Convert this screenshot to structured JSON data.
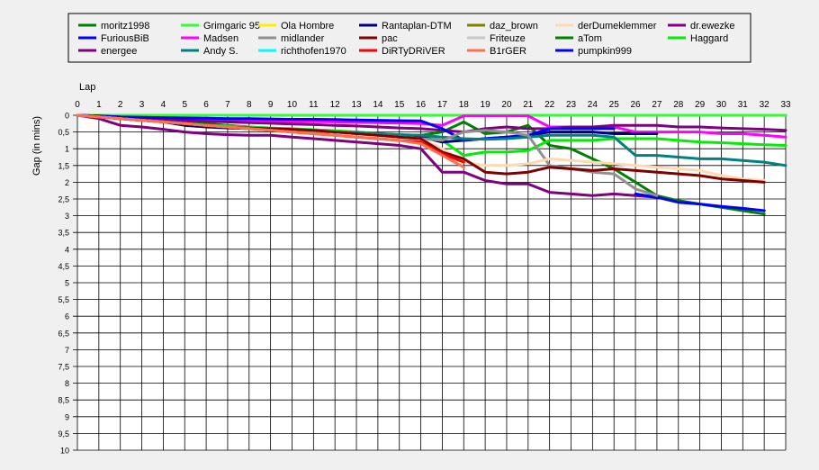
{
  "chart_data": {
    "type": "line",
    "title": "",
    "xlabel": "Lap",
    "ylabel": "Gap (in mins)",
    "y_inverted": true,
    "xlim": [
      0,
      33
    ],
    "ylim": [
      0,
      10
    ],
    "x_ticks": [
      "0",
      "1",
      "2",
      "3",
      "4",
      "5",
      "6",
      "7",
      "8",
      "9",
      "10",
      "11",
      "12",
      "13",
      "14",
      "15",
      "16",
      "17",
      "18",
      "19",
      "20",
      "21",
      "22",
      "23",
      "24",
      "25",
      "26",
      "27",
      "28",
      "29",
      "30",
      "31",
      "32",
      "33"
    ],
    "y_ticks": [
      "0",
      "0,5",
      "1",
      "1,5",
      "2",
      "2,5",
      "3",
      "3,5",
      "4",
      "4,5",
      "5",
      "5,5",
      "6",
      "6,5",
      "7",
      "7,5",
      "8",
      "8,5",
      "9",
      "9,5",
      "10"
    ],
    "grid": true,
    "legend_position": "top",
    "legend": [
      {
        "name": "moritz1998",
        "color": "#008000"
      },
      {
        "name": "Grimgaric 95",
        "color": "#33ff33"
      },
      {
        "name": "Ola Hombre",
        "color": "#ffee00"
      },
      {
        "name": "Rantaplan-DTM",
        "color": "#000080"
      },
      {
        "name": "daz_brown",
        "color": "#808000"
      },
      {
        "name": "derDumeklemmer",
        "color": "#ffdab0"
      },
      {
        "name": "dr.ewezke",
        "color": "#800080"
      },
      {
        "name": "FuriousBiB",
        "color": "#0000ff"
      },
      {
        "name": "Madsen",
        "color": "#ff00ff"
      },
      {
        "name": "midlander",
        "color": "#909090"
      },
      {
        "name": "pac",
        "color": "#800000"
      },
      {
        "name": "Friteuze",
        "color": "#c8c8c8"
      },
      {
        "name": "aTom",
        "color": "#008000"
      },
      {
        "name": "Haggard",
        "color": "#00ee00"
      },
      {
        "name": "energee",
        "color": "#800080"
      },
      {
        "name": "Andy S.",
        "color": "#008080"
      },
      {
        "name": "richthofen1970",
        "color": "#00ffff"
      },
      {
        "name": "DiRTyDRiVER",
        "color": "#ff0000"
      },
      {
        "name": "B1rGER",
        "color": "#ff7050"
      },
      {
        "name": "pumpkin999",
        "color": "#0000ff"
      }
    ],
    "series": [
      {
        "name": "moritz1998",
        "color": "#008000",
        "x": [
          0,
          1,
          2,
          3,
          4,
          5,
          6,
          7,
          8,
          9,
          10,
          11,
          12,
          13,
          14,
          15,
          16,
          17,
          18,
          19,
          20,
          21,
          22,
          23,
          24,
          25,
          26,
          27,
          28,
          29,
          30,
          31,
          32,
          33
        ],
        "values": [
          0,
          0,
          0,
          0,
          0,
          0,
          0,
          0,
          0,
          0,
          0,
          0,
          0,
          0,
          0,
          0,
          0,
          0,
          0,
          0,
          0,
          0,
          0,
          0,
          0,
          0,
          0,
          0,
          0,
          0,
          0,
          0,
          0,
          0
        ]
      },
      {
        "name": "aTom",
        "color": "#008000",
        "x": [
          0,
          1,
          2,
          3,
          4,
          5,
          6,
          7,
          8,
          9,
          10,
          11,
          12,
          13,
          14,
          15,
          16,
          17,
          18,
          19,
          20,
          21,
          22,
          23,
          24,
          25,
          26,
          27,
          28,
          29,
          30,
          31,
          32
        ],
        "values": [
          0,
          0.05,
          0.1,
          0.12,
          0.15,
          0.2,
          0.25,
          0.3,
          0.35,
          0.4,
          0.42,
          0.45,
          0.48,
          0.5,
          0.55,
          0.58,
          0.6,
          0.5,
          0.2,
          0.55,
          0.5,
          0.3,
          0.9,
          1.0,
          1.3,
          1.6,
          2.0,
          2.4,
          2.55,
          2.65,
          2.75,
          2.85,
          2.95
        ]
      },
      {
        "name": "Grimgaric 95",
        "color": "#33ff33",
        "x": [
          0,
          1,
          2,
          3,
          4,
          5,
          6,
          7,
          8,
          9,
          10,
          11,
          12,
          13,
          14,
          15,
          16,
          17,
          18,
          19,
          20,
          21,
          22,
          23,
          24,
          25,
          26,
          27,
          28,
          29,
          30,
          31,
          32,
          33
        ],
        "values": [
          0,
          0,
          0,
          0,
          0,
          0,
          0,
          0,
          0,
          0,
          0,
          0,
          0,
          0,
          0,
          0,
          0,
          0,
          0,
          0,
          0,
          0,
          0,
          0,
          0,
          0,
          0,
          0,
          0,
          0,
          0,
          0,
          0,
          0
        ]
      },
      {
        "name": "Haggard",
        "color": "#00ee00",
        "x": [
          0,
          1,
          2,
          3,
          4,
          5,
          6,
          7,
          8,
          9,
          10,
          11,
          12,
          13,
          14,
          15,
          16,
          17,
          18,
          19,
          20,
          21,
          22,
          23,
          24,
          25,
          26,
          27,
          28,
          29,
          30,
          31,
          32,
          33
        ],
        "values": [
          0,
          0.05,
          0.1,
          0.15,
          0.2,
          0.25,
          0.3,
          0.32,
          0.35,
          0.38,
          0.4,
          0.43,
          0.46,
          0.5,
          0.55,
          0.6,
          0.62,
          0.75,
          1.2,
          1.1,
          1.1,
          1.05,
          0.75,
          0.75,
          0.75,
          0.7,
          0.7,
          0.7,
          0.75,
          0.8,
          0.82,
          0.85,
          0.88,
          0.9
        ]
      },
      {
        "name": "Madsen",
        "color": "#ff00ff",
        "x": [
          0,
          1,
          2,
          3,
          4,
          5,
          6,
          7,
          8,
          9,
          10,
          11,
          12,
          13,
          14,
          15,
          16,
          17,
          18,
          19,
          20,
          21,
          22,
          23,
          24,
          25,
          26,
          27,
          28,
          29,
          30,
          31,
          32,
          33
        ],
        "values": [
          0,
          0.02,
          0.05,
          0.08,
          0.1,
          0.12,
          0.14,
          0.15,
          0.16,
          0.17,
          0.18,
          0.19,
          0.2,
          0.21,
          0.22,
          0.23,
          0.25,
          0.3,
          0.02,
          0.02,
          0.02,
          0.02,
          0.35,
          0.35,
          0.35,
          0.35,
          0.5,
          0.5,
          0.5,
          0.5,
          0.55,
          0.55,
          0.6,
          0.65
        ]
      },
      {
        "name": "dr.ewezke",
        "color": "#800080",
        "x": [
          0,
          1,
          2,
          3,
          4,
          5,
          6,
          7,
          8,
          9,
          10,
          11,
          12,
          13,
          14,
          15,
          16,
          17,
          18,
          19,
          20,
          21,
          22,
          23,
          24,
          25,
          26,
          27,
          28,
          29,
          30,
          31,
          32,
          33
        ],
        "values": [
          0,
          0.05,
          0.08,
          0.1,
          0.12,
          0.15,
          0.18,
          0.2,
          0.22,
          0.24,
          0.26,
          0.28,
          0.3,
          0.32,
          0.35,
          0.38,
          0.4,
          0.45,
          0.5,
          0.4,
          0.35,
          0.4,
          0.4,
          0.35,
          0.35,
          0.3,
          0.3,
          0.3,
          0.35,
          0.35,
          0.38,
          0.4,
          0.42,
          0.45
        ]
      },
      {
        "name": "energee",
        "color": "#800080",
        "x": [
          0,
          1,
          2,
          3,
          4,
          5,
          6,
          7,
          8,
          9,
          10,
          11,
          12,
          13,
          14,
          15,
          16,
          17,
          18,
          19,
          20,
          21,
          22,
          23,
          24,
          25,
          26,
          27
        ],
        "values": [
          0,
          0.1,
          0.3,
          0.35,
          0.42,
          0.5,
          0.55,
          0.58,
          0.6,
          0.6,
          0.65,
          0.7,
          0.75,
          0.8,
          0.85,
          0.9,
          1.0,
          1.7,
          1.7,
          1.95,
          2.05,
          2.05,
          2.3,
          2.35,
          2.4,
          2.35,
          2.4,
          2.45
        ]
      },
      {
        "name": "Rantaplan-DTM",
        "color": "#000080",
        "x": [
          0,
          1,
          2,
          3,
          4,
          5,
          6,
          7,
          8,
          9,
          10,
          11,
          12,
          13,
          14,
          15,
          16,
          17,
          18,
          19,
          20,
          21,
          22,
          23,
          24,
          25,
          26,
          27
        ],
        "values": [
          0,
          0.05,
          0.1,
          0.15,
          0.2,
          0.3,
          0.35,
          0.38,
          0.4,
          0.42,
          0.45,
          0.48,
          0.5,
          0.55,
          0.58,
          0.62,
          0.65,
          0.8,
          0.75,
          0.7,
          0.65,
          0.6,
          0.5,
          0.5,
          0.5,
          0.55,
          0.55,
          0.55
        ]
      },
      {
        "name": "FuriousBiB",
        "color": "#0000ff",
        "x": [
          0,
          1,
          2,
          3,
          4,
          5,
          6,
          7,
          8,
          9,
          10,
          11,
          12,
          13,
          14,
          15,
          16,
          17,
          18,
          19,
          20,
          21,
          22,
          23,
          24,
          25
        ],
        "values": [
          0,
          0.02,
          0.05,
          0.06,
          0.07,
          0.08,
          0.09,
          0.1,
          0.1,
          0.11,
          0.12,
          0.12,
          0.13,
          0.14,
          0.15,
          0.16,
          0.17,
          0.4,
          0.75,
          0.7,
          0.65,
          0.6,
          0.4,
          0.4,
          0.4,
          0.4
        ]
      },
      {
        "name": "pumpkin999",
        "color": "#0000ff",
        "x": [
          26,
          27,
          28,
          29,
          30,
          31,
          32
        ],
        "values": [
          2.35,
          2.45,
          2.6,
          2.65,
          2.72,
          2.78,
          2.85
        ]
      },
      {
        "name": "Andy S.",
        "color": "#008080",
        "x": [
          0,
          1,
          2,
          3,
          4,
          5,
          6,
          7,
          8,
          9,
          10,
          11,
          12,
          13,
          14,
          15,
          16,
          17,
          18,
          19,
          20,
          21,
          22,
          23,
          24,
          25,
          26,
          27,
          28,
          29,
          30,
          31,
          32,
          33
        ],
        "values": [
          0,
          0.05,
          0.1,
          0.15,
          0.2,
          0.25,
          0.3,
          0.35,
          0.4,
          0.42,
          0.45,
          0.48,
          0.5,
          0.52,
          0.55,
          0.58,
          0.6,
          0.65,
          0.7,
          0.72,
          0.7,
          0.65,
          0.6,
          0.6,
          0.6,
          0.65,
          1.2,
          1.2,
          1.25,
          1.3,
          1.3,
          1.35,
          1.4,
          1.5
        ]
      },
      {
        "name": "midlander",
        "color": "#909090",
        "x": [
          0,
          1,
          2,
          3,
          4,
          5,
          6,
          7,
          8,
          9,
          10,
          11,
          12,
          13,
          14,
          15,
          16,
          17,
          18,
          19,
          20,
          21,
          22,
          23,
          24,
          25,
          26,
          27
        ],
        "values": [
          0,
          0.05,
          0.1,
          0.15,
          0.2,
          0.25,
          0.3,
          0.35,
          0.38,
          0.4,
          0.45,
          0.48,
          0.5,
          0.55,
          0.6,
          0.65,
          0.7,
          0.75,
          0.5,
          0.45,
          0.5,
          0.6,
          1.5,
          1.6,
          1.7,
          1.75,
          2.2,
          2.4
        ]
      },
      {
        "name": "derDumeklemmer",
        "color": "#ffdab0",
        "x": [
          0,
          1,
          2,
          3,
          4,
          5,
          6,
          7,
          8,
          9,
          10,
          11,
          12,
          13,
          14,
          15,
          16,
          17,
          18,
          19,
          20,
          21,
          22,
          23,
          24,
          25,
          26,
          27,
          28,
          29,
          30,
          31,
          32
        ],
        "values": [
          0,
          0.05,
          0.1,
          0.15,
          0.2,
          0.25,
          0.3,
          0.35,
          0.38,
          0.4,
          0.42,
          0.45,
          0.5,
          0.55,
          0.6,
          0.65,
          0.7,
          1.0,
          1.4,
          1.5,
          1.5,
          1.45,
          1.3,
          1.35,
          1.4,
          1.45,
          1.5,
          1.55,
          1.6,
          1.65,
          1.8,
          1.9,
          1.95
        ]
      },
      {
        "name": "pac",
        "color": "#800000",
        "x": [
          0,
          1,
          2,
          3,
          4,
          5,
          6,
          7,
          8,
          9,
          10,
          11,
          12,
          13,
          14,
          15,
          16,
          17,
          18,
          19,
          20,
          21,
          22,
          23,
          24,
          25,
          26,
          27,
          28,
          29,
          30,
          31,
          32
        ],
        "values": [
          0,
          0.05,
          0.1,
          0.15,
          0.2,
          0.25,
          0.3,
          0.35,
          0.38,
          0.4,
          0.42,
          0.45,
          0.5,
          0.55,
          0.6,
          0.65,
          0.7,
          1.1,
          1.3,
          1.7,
          1.75,
          1.7,
          1.55,
          1.6,
          1.65,
          1.6,
          1.65,
          1.7,
          1.75,
          1.8,
          1.9,
          1.95,
          2.0
        ]
      },
      {
        "name": "Ola Hombre",
        "color": "#ffee00",
        "x": [
          0,
          1,
          2,
          3,
          4,
          5,
          6,
          7,
          8,
          9,
          10,
          11,
          12,
          13,
          14,
          15,
          16
        ],
        "values": [
          0,
          0.05,
          0.1,
          0.15,
          0.2,
          0.25,
          0.3,
          0.35,
          0.4,
          0.45,
          0.5,
          0.55,
          0.6,
          0.65,
          0.7,
          0.75,
          0.8
        ]
      },
      {
        "name": "DiRTyDRiVER",
        "color": "#ff0000",
        "x": [
          0,
          1,
          2,
          3,
          4,
          5,
          6,
          7,
          8,
          9,
          10,
          11,
          12,
          13,
          14,
          15,
          16,
          17,
          18
        ],
        "values": [
          0,
          0.05,
          0.1,
          0.15,
          0.2,
          0.25,
          0.3,
          0.35,
          0.4,
          0.45,
          0.5,
          0.55,
          0.6,
          0.65,
          0.7,
          0.75,
          0.8,
          1.15,
          1.4
        ]
      },
      {
        "name": "B1rGER",
        "color": "#ff7050",
        "x": [
          0,
          1,
          2,
          3,
          4,
          5,
          6,
          7,
          8,
          9,
          10,
          11,
          12,
          13,
          14,
          15,
          16,
          17,
          18
        ],
        "values": [
          0,
          0.05,
          0.1,
          0.15,
          0.2,
          0.25,
          0.3,
          0.35,
          0.4,
          0.45,
          0.5,
          0.55,
          0.6,
          0.65,
          0.7,
          0.75,
          0.85,
          1.2,
          1.55
        ]
      }
    ]
  }
}
